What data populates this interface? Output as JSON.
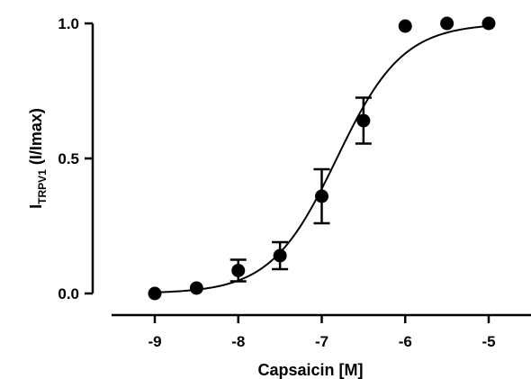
{
  "chart_data": {
    "type": "scatter",
    "title": "",
    "xlabel": "Capsaicin [M]",
    "ylabel": {
      "main": "I",
      "subscript": "TRPV1",
      "suffix": " (I/Imax)"
    },
    "xlim": [
      -9.5,
      -4.5
    ],
    "ylim": [
      0.0,
      1.0
    ],
    "x_ticks": [
      -9,
      -8,
      -7,
      -6,
      -5
    ],
    "x_tick_labels": [
      "-9",
      "-8",
      "-7",
      "-6",
      "-5"
    ],
    "y_ticks": [
      0.0,
      0.5,
      1.0
    ],
    "y_tick_labels": [
      "0.0",
      "0.5",
      "1.0"
    ],
    "grid": false,
    "series": [
      {
        "x": [
          -9,
          -8.5,
          -8,
          -7.5,
          -7,
          -6.5,
          -6,
          -5.5,
          -5
        ],
        "y": [
          0.0,
          0.02,
          0.085,
          0.14,
          0.36,
          0.64,
          0.99,
          1.0,
          1.0
        ],
        "error": [
          0.0,
          0.0,
          0.04,
          0.05,
          0.1,
          0.085,
          0.0,
          0.0,
          0.0
        ]
      }
    ],
    "fit": {
      "model": "hill",
      "bottom": 0.0,
      "top": 1.0,
      "log_ec50": -6.82,
      "hill_slope": 1.1
    },
    "colors": {
      "points": "#000000",
      "curve": "#000000",
      "axes": "#000000"
    }
  }
}
